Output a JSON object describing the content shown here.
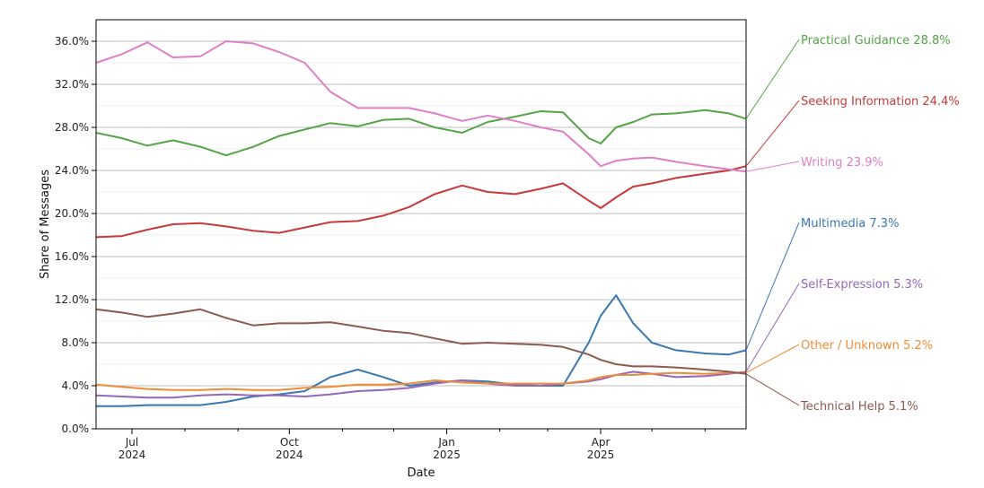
{
  "chart_data": {
    "type": "line",
    "title": "",
    "xlabel": "Date",
    "ylabel": "Share of Messages",
    "x": [
      "2024-06-10",
      "2024-06-25",
      "2024-07-10",
      "2024-07-25",
      "2024-08-10",
      "2024-08-25",
      "2024-09-10",
      "2024-09-25",
      "2024-10-10",
      "2024-10-25",
      "2024-11-10",
      "2024-11-25",
      "2024-12-10",
      "2024-12-25",
      "2025-01-10",
      "2025-01-25",
      "2025-02-10",
      "2025-02-25",
      "2025-03-10",
      "2025-03-25",
      "2025-04-01",
      "2025-04-10",
      "2025-04-20",
      "2025-05-01",
      "2025-05-15",
      "2025-06-01",
      "2025-06-15",
      "2025-06-25"
    ],
    "xlim": [
      "2024-06-10",
      "2025-06-25"
    ],
    "ylim": [
      0,
      38
    ],
    "yticks": [
      0,
      4,
      8,
      12,
      16,
      20,
      24,
      28,
      32,
      36
    ],
    "ytick_format": "{v}.0%",
    "xticks": [
      {
        "date": "2024-07-01",
        "line1": "Jul",
        "line2": "2024"
      },
      {
        "date": "2024-10-01",
        "line1": "Oct",
        "line2": "2024"
      },
      {
        "date": "2025-01-01",
        "line1": "Jan",
        "line2": "2025"
      },
      {
        "date": "2025-04-01",
        "line1": "Apr",
        "line2": "2025"
      }
    ],
    "minor_xticks": [
      "2024-08-01",
      "2024-09-01",
      "2024-11-01",
      "2024-12-01",
      "2025-02-01",
      "2025-03-01",
      "2025-05-01",
      "2025-06-01"
    ],
    "grid": true,
    "legend": "right end labels",
    "series": [
      {
        "name": "Practical Guidance",
        "end_label": "28.8%",
        "color": "#55a447",
        "values": [
          27.5,
          27.0,
          26.3,
          26.8,
          26.2,
          25.4,
          26.2,
          27.2,
          27.8,
          28.4,
          28.1,
          28.7,
          28.8,
          28.0,
          27.5,
          28.5,
          29.0,
          29.5,
          29.4,
          27.0,
          26.5,
          28.0,
          28.5,
          29.2,
          29.3,
          29.6,
          29.3,
          28.8
        ]
      },
      {
        "name": "Seeking Information",
        "end_label": "24.4%",
        "color": "#c83a3a",
        "values": [
          17.8,
          17.9,
          18.5,
          19.0,
          19.1,
          18.8,
          18.4,
          18.2,
          18.7,
          19.2,
          19.3,
          19.8,
          20.6,
          21.8,
          22.6,
          22.0,
          21.8,
          22.3,
          22.8,
          21.2,
          20.5,
          21.5,
          22.5,
          22.8,
          23.3,
          23.7,
          24.0,
          24.4
        ]
      },
      {
        "name": "Writing",
        "end_label": "23.9%",
        "color": "#de7fc8",
        "values": [
          34.0,
          34.8,
          35.9,
          34.5,
          34.6,
          36.0,
          35.8,
          35.0,
          34.0,
          31.3,
          29.8,
          29.8,
          29.8,
          29.3,
          28.6,
          29.1,
          28.6,
          28.0,
          27.6,
          25.5,
          24.4,
          24.9,
          25.1,
          25.2,
          24.8,
          24.4,
          24.1,
          23.9
        ]
      },
      {
        "name": "Multimedia",
        "end_label": "7.3%",
        "color": "#3a78b0",
        "values": [
          2.1,
          2.1,
          2.2,
          2.2,
          2.2,
          2.5,
          3.0,
          3.2,
          3.5,
          4.8,
          5.5,
          4.8,
          4.0,
          4.3,
          4.5,
          4.4,
          4.1,
          4.0,
          4.0,
          8.0,
          10.5,
          12.4,
          9.8,
          8.0,
          7.3,
          7.0,
          6.9,
          7.3
        ]
      },
      {
        "name": "Self-Expression",
        "end_label": "5.3%",
        "color": "#9467bd",
        "values": [
          3.1,
          3.0,
          2.9,
          2.9,
          3.1,
          3.2,
          3.1,
          3.1,
          3.0,
          3.2,
          3.5,
          3.6,
          3.8,
          4.2,
          4.5,
          4.2,
          4.0,
          4.0,
          4.2,
          4.4,
          4.6,
          5.0,
          5.3,
          5.1,
          4.8,
          4.9,
          5.1,
          5.3
        ]
      },
      {
        "name": "Other / Unknown",
        "end_label": "5.2%",
        "color": "#f08c35",
        "values": [
          4.1,
          3.9,
          3.7,
          3.6,
          3.6,
          3.7,
          3.6,
          3.6,
          3.8,
          3.9,
          4.1,
          4.1,
          4.2,
          4.5,
          4.3,
          4.2,
          4.2,
          4.2,
          4.2,
          4.5,
          4.8,
          5.0,
          5.0,
          5.1,
          5.2,
          5.1,
          5.2,
          5.2
        ]
      },
      {
        "name": "Technical Help",
        "end_label": "5.1%",
        "color": "#8c5a4f",
        "values": [
          11.1,
          10.8,
          10.4,
          10.7,
          11.1,
          10.3,
          9.6,
          9.8,
          9.8,
          9.9,
          9.5,
          9.1,
          8.9,
          8.4,
          7.9,
          8.0,
          7.9,
          7.8,
          7.6,
          6.9,
          6.4,
          6.0,
          5.8,
          5.8,
          5.7,
          5.5,
          5.3,
          5.1
        ]
      }
    ]
  }
}
